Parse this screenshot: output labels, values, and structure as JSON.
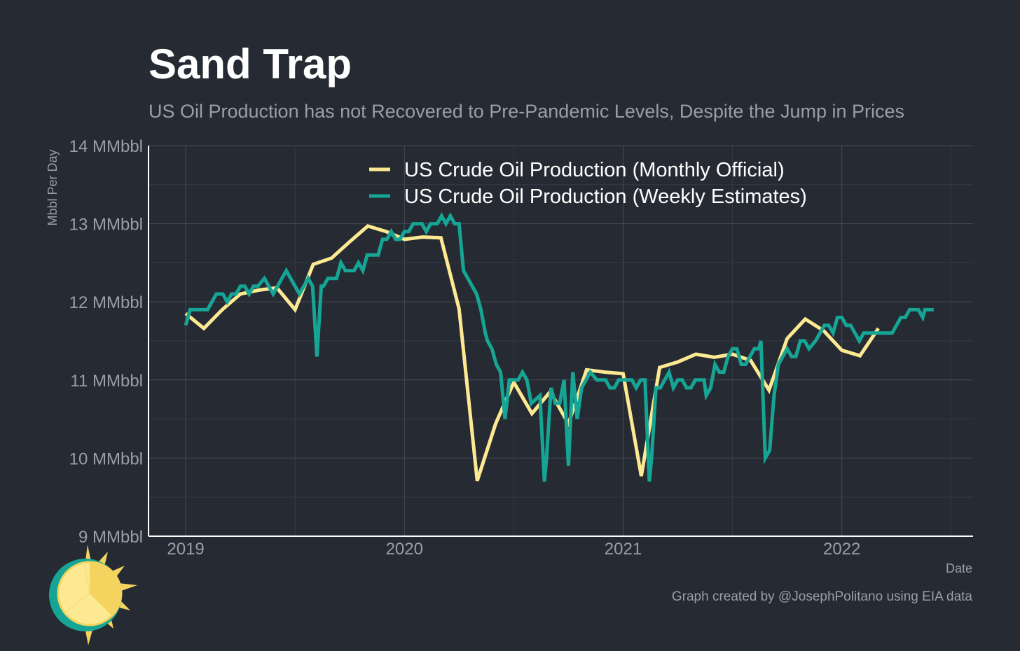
{
  "chart_data": {
    "type": "line",
    "title": "Sand Trap",
    "subtitle": "US Oil Production has not Recovered to Pre-Pandemic Levels, Despite the Jump in Prices",
    "xlabel": "Date",
    "ylabel": "Mbbl Per Day",
    "ylim": [
      9,
      14
    ],
    "xlim": [
      2018.83,
      2022.6
    ],
    "y_ticks": [
      {
        "value": 9,
        "label": "9 MMbbl"
      },
      {
        "value": 10,
        "label": "10 MMbbl"
      },
      {
        "value": 11,
        "label": "11 MMbbl"
      },
      {
        "value": 12,
        "label": "12 MMbbl"
      },
      {
        "value": 13,
        "label": "13 MMbbl"
      },
      {
        "value": 14,
        "label": "14 MMbbl"
      }
    ],
    "x_ticks": [
      {
        "value": 2019,
        "label": "2019"
      },
      {
        "value": 2020,
        "label": "2020"
      },
      {
        "value": 2021,
        "label": "2021"
      },
      {
        "value": 2022,
        "label": "2022"
      }
    ],
    "grid": true,
    "legend_position": "top-center",
    "series": [
      {
        "name": "US Crude Oil Production (Monthly Official)",
        "color": "#fde992",
        "points": [
          [
            2019.0,
            11.85
          ],
          [
            2019.083,
            11.66
          ],
          [
            2019.167,
            11.9
          ],
          [
            2019.25,
            12.1
          ],
          [
            2019.333,
            12.15
          ],
          [
            2019.417,
            12.18
          ],
          [
            2019.5,
            11.9
          ],
          [
            2019.583,
            12.48
          ],
          [
            2019.667,
            12.56
          ],
          [
            2019.75,
            12.77
          ],
          [
            2019.833,
            12.97
          ],
          [
            2019.917,
            12.9
          ],
          [
            2020.0,
            12.8
          ],
          [
            2020.083,
            12.83
          ],
          [
            2020.167,
            12.82
          ],
          [
            2020.25,
            11.91
          ],
          [
            2020.333,
            9.71
          ],
          [
            2020.417,
            10.44
          ],
          [
            2020.5,
            10.97
          ],
          [
            2020.583,
            10.57
          ],
          [
            2020.667,
            10.85
          ],
          [
            2020.75,
            10.44
          ],
          [
            2020.833,
            11.13
          ],
          [
            2020.917,
            11.1
          ],
          [
            2021.0,
            11.08
          ],
          [
            2021.083,
            9.77
          ],
          [
            2021.167,
            11.16
          ],
          [
            2021.25,
            11.23
          ],
          [
            2021.333,
            11.33
          ],
          [
            2021.417,
            11.29
          ],
          [
            2021.5,
            11.33
          ],
          [
            2021.583,
            11.25
          ],
          [
            2021.667,
            10.87
          ],
          [
            2021.75,
            11.53
          ],
          [
            2021.833,
            11.78
          ],
          [
            2021.917,
            11.63
          ],
          [
            2022.0,
            11.38
          ],
          [
            2022.083,
            11.31
          ],
          [
            2022.167,
            11.66
          ]
        ]
      },
      {
        "name": "US Crude Oil Production (Weekly Estimates)",
        "color": "#16a595",
        "points": [
          [
            2019.0,
            11.7
          ],
          [
            2019.02,
            11.9
          ],
          [
            2019.1,
            11.9
          ],
          [
            2019.14,
            12.1
          ],
          [
            2019.17,
            12.1
          ],
          [
            2019.19,
            12.0
          ],
          [
            2019.21,
            12.1
          ],
          [
            2019.23,
            12.1
          ],
          [
            2019.25,
            12.2
          ],
          [
            2019.27,
            12.2
          ],
          [
            2019.29,
            12.1
          ],
          [
            2019.31,
            12.2
          ],
          [
            2019.33,
            12.2
          ],
          [
            2019.36,
            12.3
          ],
          [
            2019.38,
            12.2
          ],
          [
            2019.4,
            12.1
          ],
          [
            2019.42,
            12.2
          ],
          [
            2019.44,
            12.3
          ],
          [
            2019.46,
            12.4
          ],
          [
            2019.48,
            12.3
          ],
          [
            2019.5,
            12.2
          ],
          [
            2019.52,
            12.1
          ],
          [
            2019.54,
            12.2
          ],
          [
            2019.56,
            12.3
          ],
          [
            2019.58,
            12.2
          ],
          [
            2019.6,
            11.3
          ],
          [
            2019.62,
            12.2
          ],
          [
            2019.63,
            12.2
          ],
          [
            2019.65,
            12.3
          ],
          [
            2019.69,
            12.3
          ],
          [
            2019.71,
            12.5
          ],
          [
            2019.73,
            12.4
          ],
          [
            2019.77,
            12.4
          ],
          [
            2019.79,
            12.5
          ],
          [
            2019.81,
            12.4
          ],
          [
            2019.83,
            12.6
          ],
          [
            2019.88,
            12.6
          ],
          [
            2019.9,
            12.8
          ],
          [
            2019.92,
            12.8
          ],
          [
            2019.94,
            12.9
          ],
          [
            2019.96,
            12.8
          ],
          [
            2019.98,
            12.8
          ],
          [
            2020.0,
            12.9
          ],
          [
            2020.02,
            12.9
          ],
          [
            2020.04,
            13.0
          ],
          [
            2020.08,
            13.0
          ],
          [
            2020.1,
            12.9
          ],
          [
            2020.12,
            13.0
          ],
          [
            2020.15,
            13.0
          ],
          [
            2020.17,
            13.1
          ],
          [
            2020.19,
            13.0
          ],
          [
            2020.21,
            13.1
          ],
          [
            2020.23,
            13.0
          ],
          [
            2020.25,
            13.0
          ],
          [
            2020.27,
            12.4
          ],
          [
            2020.29,
            12.3
          ],
          [
            2020.31,
            12.2
          ],
          [
            2020.33,
            12.1
          ],
          [
            2020.35,
            11.9
          ],
          [
            2020.37,
            11.6
          ],
          [
            2020.38,
            11.5
          ],
          [
            2020.4,
            11.4
          ],
          [
            2020.42,
            11.2
          ],
          [
            2020.44,
            11.1
          ],
          [
            2020.46,
            10.5
          ],
          [
            2020.48,
            11.0
          ],
          [
            2020.52,
            11.0
          ],
          [
            2020.54,
            11.1
          ],
          [
            2020.56,
            11.0
          ],
          [
            2020.58,
            10.7
          ],
          [
            2020.62,
            10.8
          ],
          [
            2020.64,
            9.7
          ],
          [
            2020.65,
            10.0
          ],
          [
            2020.67,
            10.9
          ],
          [
            2020.69,
            10.7
          ],
          [
            2020.71,
            10.7
          ],
          [
            2020.73,
            11.0
          ],
          [
            2020.75,
            9.9
          ],
          [
            2020.77,
            11.1
          ],
          [
            2020.79,
            10.5
          ],
          [
            2020.81,
            10.9
          ],
          [
            2020.83,
            11.0
          ],
          [
            2020.85,
            11.1
          ],
          [
            2020.88,
            11.0
          ],
          [
            2020.92,
            11.0
          ],
          [
            2020.94,
            10.9
          ],
          [
            2020.96,
            10.9
          ],
          [
            2020.98,
            11.0
          ],
          [
            2021.0,
            11.0
          ],
          [
            2021.02,
            11.0
          ],
          [
            2021.04,
            11.0
          ],
          [
            2021.06,
            10.9
          ],
          [
            2021.08,
            11.0
          ],
          [
            2021.1,
            11.0
          ],
          [
            2021.12,
            9.7
          ],
          [
            2021.13,
            10.0
          ],
          [
            2021.15,
            10.9
          ],
          [
            2021.17,
            10.9
          ],
          [
            2021.19,
            11.0
          ],
          [
            2021.21,
            11.1
          ],
          [
            2021.23,
            10.9
          ],
          [
            2021.25,
            11.0
          ],
          [
            2021.27,
            11.0
          ],
          [
            2021.29,
            10.9
          ],
          [
            2021.31,
            10.9
          ],
          [
            2021.33,
            11.0
          ],
          [
            2021.37,
            11.0
          ],
          [
            2021.38,
            10.8
          ],
          [
            2021.4,
            10.9
          ],
          [
            2021.42,
            11.2
          ],
          [
            2021.44,
            11.1
          ],
          [
            2021.46,
            11.1
          ],
          [
            2021.48,
            11.3
          ],
          [
            2021.5,
            11.4
          ],
          [
            2021.52,
            11.4
          ],
          [
            2021.54,
            11.2
          ],
          [
            2021.56,
            11.2
          ],
          [
            2021.58,
            11.3
          ],
          [
            2021.6,
            11.4
          ],
          [
            2021.62,
            11.4
          ],
          [
            2021.63,
            11.5
          ],
          [
            2021.65,
            10.0
          ],
          [
            2021.67,
            10.1
          ],
          [
            2021.69,
            10.8
          ],
          [
            2021.71,
            11.2
          ],
          [
            2021.73,
            11.3
          ],
          [
            2021.75,
            11.4
          ],
          [
            2021.77,
            11.3
          ],
          [
            2021.79,
            11.3
          ],
          [
            2021.81,
            11.5
          ],
          [
            2021.83,
            11.5
          ],
          [
            2021.85,
            11.4
          ],
          [
            2021.88,
            11.5
          ],
          [
            2021.9,
            11.6
          ],
          [
            2021.92,
            11.7
          ],
          [
            2021.94,
            11.7
          ],
          [
            2021.96,
            11.6
          ],
          [
            2021.98,
            11.8
          ],
          [
            2022.0,
            11.8
          ],
          [
            2022.02,
            11.7
          ],
          [
            2022.04,
            11.7
          ],
          [
            2022.06,
            11.6
          ],
          [
            2022.08,
            11.5
          ],
          [
            2022.1,
            11.6
          ],
          [
            2022.15,
            11.6
          ],
          [
            2022.17,
            11.6
          ],
          [
            2022.19,
            11.6
          ],
          [
            2022.23,
            11.6
          ],
          [
            2022.25,
            11.7
          ],
          [
            2022.27,
            11.8
          ],
          [
            2022.29,
            11.8
          ],
          [
            2022.31,
            11.9
          ],
          [
            2022.35,
            11.9
          ],
          [
            2022.37,
            11.8
          ],
          [
            2022.38,
            11.9
          ],
          [
            2022.42,
            11.9
          ]
        ]
      }
    ],
    "credit": "Graph created by @JosephPolitano using EIA data"
  }
}
